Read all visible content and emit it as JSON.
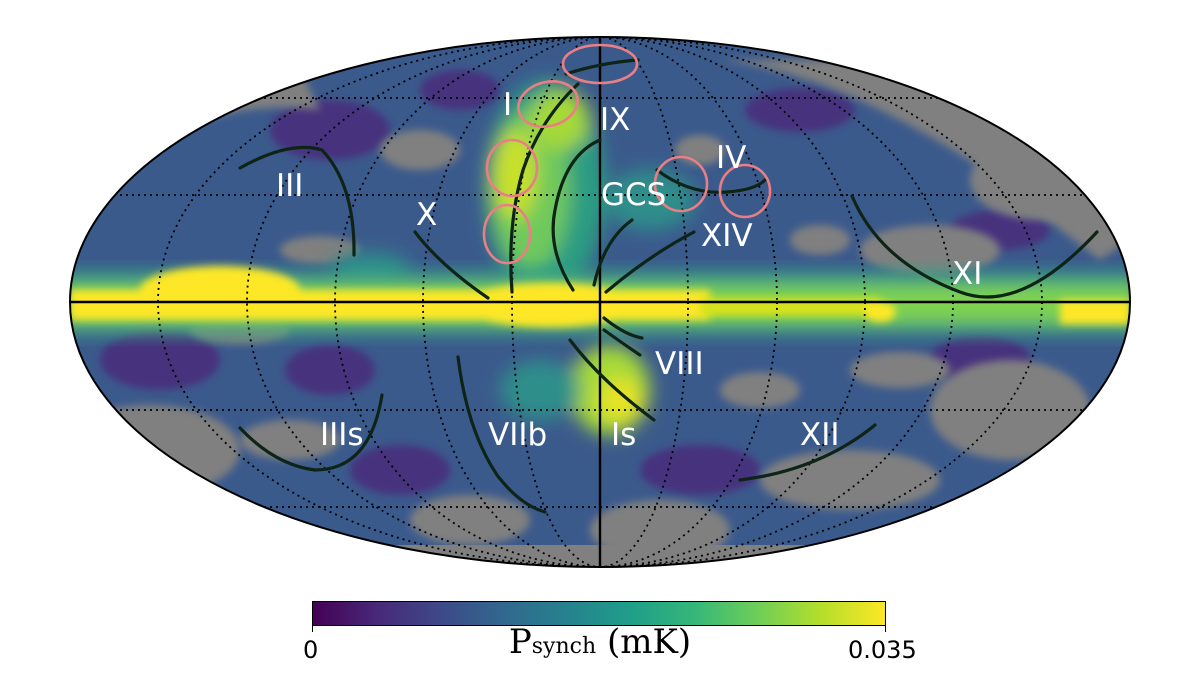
{
  "map": {
    "projection": "mollweide",
    "masked_color": "#808080",
    "colormap": "viridis",
    "graticule": "dotted",
    "region_labels": [
      {
        "id": "I",
        "text": "I"
      },
      {
        "id": "IX",
        "text": "IX"
      },
      {
        "id": "III",
        "text": "III"
      },
      {
        "id": "X",
        "text": "X"
      },
      {
        "id": "GCS",
        "text": "GCS"
      },
      {
        "id": "IV",
        "text": "IV"
      },
      {
        "id": "XIV",
        "text": "XIV"
      },
      {
        "id": "XI",
        "text": "XI"
      },
      {
        "id": "VIII",
        "text": "VIII"
      },
      {
        "id": "IIIs",
        "text": "IIIs"
      },
      {
        "id": "VIIb",
        "text": "VIIb"
      },
      {
        "id": "Is",
        "text": "Is"
      },
      {
        "id": "XII",
        "text": "XII"
      }
    ]
  },
  "colorbar": {
    "min_label": "0",
    "max_label": "0.035",
    "title_main": "P",
    "title_sub": "synch",
    "title_unit": " (mK)",
    "colors": [
      "#440154",
      "#482878",
      "#3e4989",
      "#31688e",
      "#26828e",
      "#1f9e89",
      "#35b779",
      "#6ece58",
      "#b5de2b",
      "#fde725"
    ]
  }
}
